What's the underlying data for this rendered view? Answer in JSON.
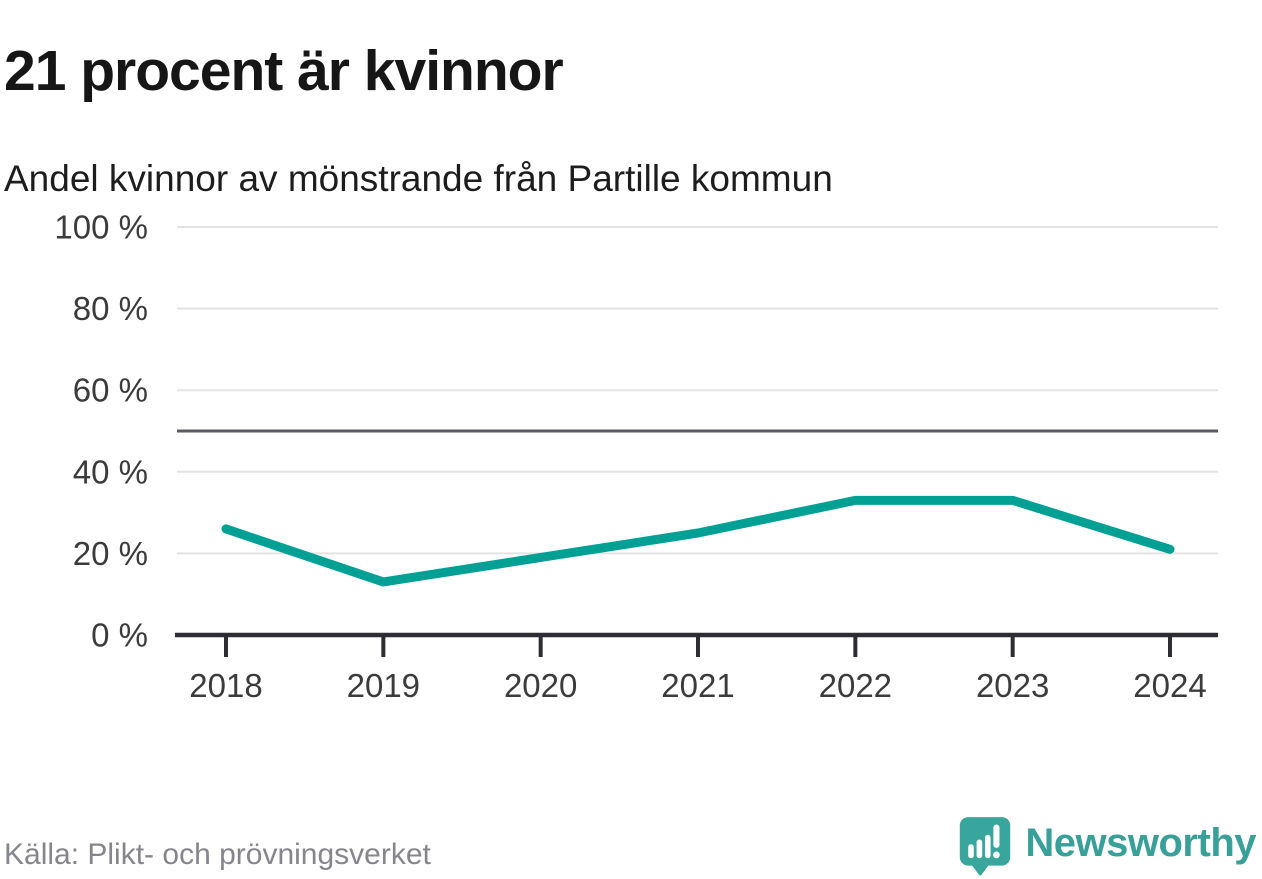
{
  "title": "21 procent är kvinnor",
  "subtitle": "Andel kvinnor av mönstrande från Partille kommun",
  "source": "Källa: Plikt- och prövningsverket",
  "branding": {
    "name": "Newsworthy",
    "logo_icon": "newsworthy-speech-bubble-bar-chart-icon"
  },
  "colors": {
    "line": "#01a094",
    "reference_line": "#5c5a63",
    "grid": "#e3e3e3",
    "axis": "#2e2d33",
    "brand_teal": "#38a099",
    "title_text": "#161616",
    "muted_text": "#85858d"
  },
  "chart_data": {
    "type": "line",
    "title": "21 procent är kvinnor",
    "subtitle": "Andel kvinnor av mönstrande från Partille kommun",
    "categories": [
      "2018",
      "2019",
      "2020",
      "2021",
      "2022",
      "2023",
      "2024"
    ],
    "series": [
      {
        "name": "Andel kvinnor av mönstrande",
        "values": [
          26,
          13,
          19,
          25,
          33,
          33,
          21
        ]
      }
    ],
    "unit": "%",
    "xlabel": "",
    "ylabel": "",
    "ylim": [
      0,
      100
    ],
    "yticks": [
      0,
      20,
      40,
      60,
      80,
      100
    ],
    "ytick_labels": [
      "0 %",
      "20 %",
      "40 %",
      "60 %",
      "80 %",
      "100 %"
    ],
    "reference_line": {
      "value": 50
    },
    "grid": "horizontal",
    "legend": "none",
    "line_color": "#01a094"
  }
}
